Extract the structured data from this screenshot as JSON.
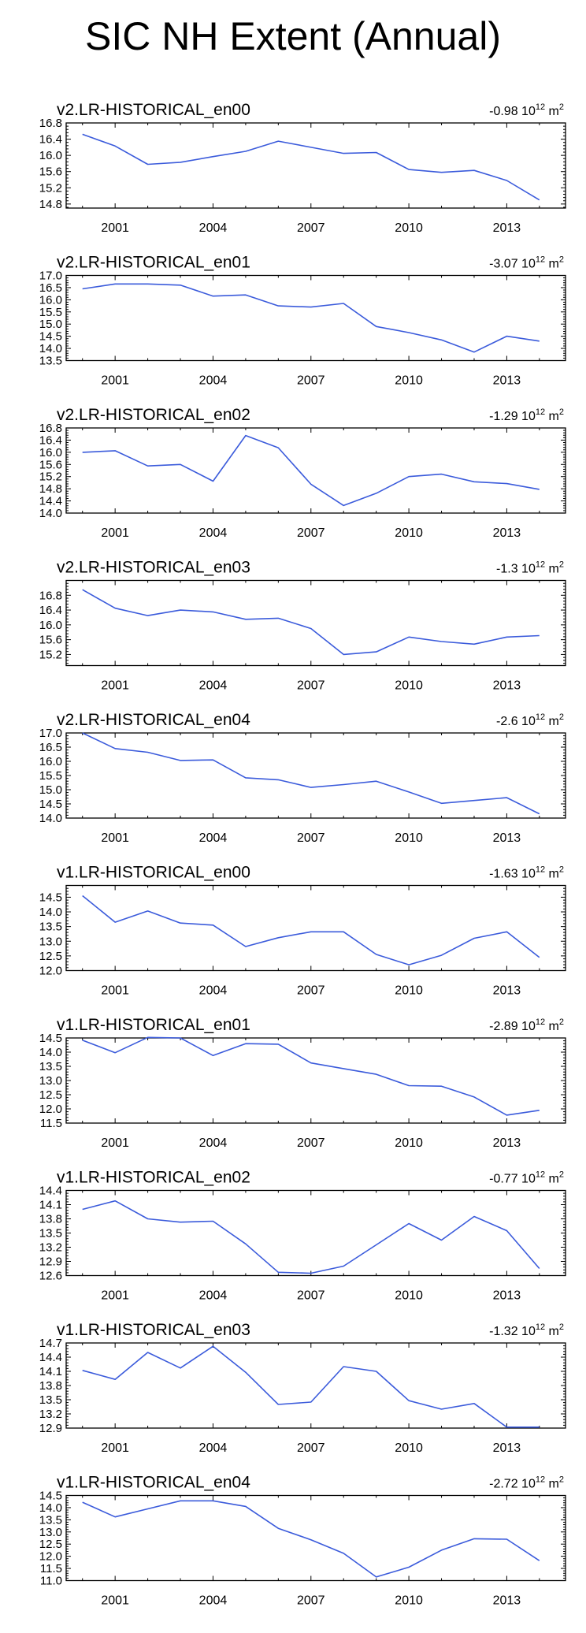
{
  "title": "SIC NH Extent (Annual)",
  "line_color": "#3b5bdb",
  "chart_data": [
    {
      "type": "line",
      "title": "v2.LR-HISTORICAL_en00",
      "trend_value": "-0.98",
      "trend_unit": "10",
      "trend_unit_exp": "12",
      "trend_unit_suffix": "m",
      "trend_unit_suffix_exp": "2",
      "x": [
        2000,
        2001,
        2002,
        2003,
        2004,
        2005,
        2006,
        2007,
        2008,
        2009,
        2010,
        2011,
        2012,
        2013,
        2014
      ],
      "x_ticklabels": [
        "2001",
        "2004",
        "2007",
        "2010",
        "2013"
      ],
      "x_tickvalues": [
        2001,
        2004,
        2007,
        2010,
        2013
      ],
      "xlim": [
        1999.5,
        2014.8
      ],
      "ylim": [
        14.7,
        16.8
      ],
      "y_ticklabels": [
        "14.8",
        "15.2",
        "15.6",
        "16.0",
        "16.4",
        "16.8"
      ],
      "y_tickvalues": [
        14.8,
        15.2,
        15.6,
        16.0,
        16.4,
        16.8
      ],
      "values": [
        16.52,
        16.23,
        15.78,
        15.83,
        15.97,
        16.1,
        16.35,
        16.2,
        16.05,
        16.07,
        15.65,
        15.58,
        15.63,
        15.38,
        14.9
      ]
    },
    {
      "type": "line",
      "title": "v2.LR-HISTORICAL_en01",
      "trend_value": "-3.07",
      "trend_unit": "10",
      "trend_unit_exp": "12",
      "trend_unit_suffix": "m",
      "trend_unit_suffix_exp": "2",
      "x": [
        2000,
        2001,
        2002,
        2003,
        2004,
        2005,
        2006,
        2007,
        2008,
        2009,
        2010,
        2011,
        2012,
        2013,
        2014
      ],
      "x_ticklabels": [
        "2001",
        "2004",
        "2007",
        "2010",
        "2013"
      ],
      "x_tickvalues": [
        2001,
        2004,
        2007,
        2010,
        2013
      ],
      "xlim": [
        1999.5,
        2014.8
      ],
      "ylim": [
        13.5,
        17.0
      ],
      "y_ticklabels": [
        "13.5",
        "14.0",
        "14.5",
        "15.0",
        "15.5",
        "16.0",
        "16.5",
        "17.0"
      ],
      "y_tickvalues": [
        13.5,
        14.0,
        14.5,
        15.0,
        15.5,
        16.0,
        16.5,
        17.0
      ],
      "values": [
        16.45,
        16.65,
        16.65,
        16.6,
        16.15,
        16.2,
        15.75,
        15.7,
        15.85,
        14.9,
        14.65,
        14.35,
        13.85,
        14.5,
        14.3
      ]
    },
    {
      "type": "line",
      "title": "v2.LR-HISTORICAL_en02",
      "trend_value": "-1.29",
      "trend_unit": "10",
      "trend_unit_exp": "12",
      "trend_unit_suffix": "m",
      "trend_unit_suffix_exp": "2",
      "x": [
        2000,
        2001,
        2002,
        2003,
        2004,
        2005,
        2006,
        2007,
        2008,
        2009,
        2010,
        2011,
        2012,
        2013,
        2014
      ],
      "x_ticklabels": [
        "2001",
        "2004",
        "2007",
        "2010",
        "2013"
      ],
      "x_tickvalues": [
        2001,
        2004,
        2007,
        2010,
        2013
      ],
      "xlim": [
        1999.5,
        2014.8
      ],
      "ylim": [
        14.0,
        16.8
      ],
      "y_ticklabels": [
        "14.0",
        "14.4",
        "14.8",
        "15.2",
        "15.6",
        "16.0",
        "16.4",
        "16.8"
      ],
      "y_tickvalues": [
        14.0,
        14.4,
        14.8,
        15.2,
        15.6,
        16.0,
        16.4,
        16.8
      ],
      "values": [
        16.0,
        16.05,
        15.55,
        15.6,
        15.05,
        16.55,
        16.15,
        14.95,
        14.25,
        14.65,
        15.2,
        15.28,
        15.03,
        14.97,
        14.78
      ]
    },
    {
      "type": "line",
      "title": "v2.LR-HISTORICAL_en03",
      "trend_value": "-1.3",
      "trend_unit": "10",
      "trend_unit_exp": "12",
      "trend_unit_suffix": "m",
      "trend_unit_suffix_exp": "2",
      "x": [
        2000,
        2001,
        2002,
        2003,
        2004,
        2005,
        2006,
        2007,
        2008,
        2009,
        2010,
        2011,
        2012,
        2013,
        2014
      ],
      "x_ticklabels": [
        "2001",
        "2004",
        "2007",
        "2010",
        "2013"
      ],
      "x_tickvalues": [
        2001,
        2004,
        2007,
        2010,
        2013
      ],
      "xlim": [
        1999.5,
        2014.8
      ],
      "ylim": [
        14.9,
        17.2
      ],
      "y_ticklabels": [
        "15.2",
        "15.6",
        "16.0",
        "16.4",
        "16.8"
      ],
      "y_tickvalues": [
        15.2,
        15.6,
        16.0,
        16.4,
        16.8
      ],
      "values": [
        16.95,
        16.45,
        16.25,
        16.4,
        16.35,
        16.15,
        16.18,
        15.9,
        15.2,
        15.27,
        15.67,
        15.55,
        15.48,
        15.67,
        15.71
      ]
    },
    {
      "type": "line",
      "title": "v2.LR-HISTORICAL_en04",
      "trend_value": "-2.6",
      "trend_unit": "10",
      "trend_unit_exp": "12",
      "trend_unit_suffix": "m",
      "trend_unit_suffix_exp": "2",
      "x": [
        2000,
        2001,
        2002,
        2003,
        2004,
        2005,
        2006,
        2007,
        2008,
        2009,
        2010,
        2011,
        2012,
        2013,
        2014
      ],
      "x_ticklabels": [
        "2001",
        "2004",
        "2007",
        "2010",
        "2013"
      ],
      "x_tickvalues": [
        2001,
        2004,
        2007,
        2010,
        2013
      ],
      "xlim": [
        1999.5,
        2014.8
      ],
      "ylim": [
        14.0,
        17.0
      ],
      "y_ticklabels": [
        "14.0",
        "14.5",
        "15.0",
        "15.5",
        "16.0",
        "16.5",
        "17.0"
      ],
      "y_tickvalues": [
        14.0,
        14.5,
        15.0,
        15.5,
        16.0,
        16.5,
        17.0
      ],
      "values": [
        17.0,
        16.45,
        16.32,
        16.03,
        16.05,
        15.42,
        15.35,
        15.08,
        15.18,
        15.3,
        14.92,
        14.52,
        14.62,
        14.72,
        14.15
      ]
    },
    {
      "type": "line",
      "title": "v1.LR-HISTORICAL_en00",
      "trend_value": "-1.63",
      "trend_unit": "10",
      "trend_unit_exp": "12",
      "trend_unit_suffix": "m",
      "trend_unit_suffix_exp": "2",
      "x": [
        2000,
        2001,
        2002,
        2003,
        2004,
        2005,
        2006,
        2007,
        2008,
        2009,
        2010,
        2011,
        2012,
        2013,
        2014
      ],
      "x_ticklabels": [
        "2001",
        "2004",
        "2007",
        "2010",
        "2013"
      ],
      "x_tickvalues": [
        2001,
        2004,
        2007,
        2010,
        2013
      ],
      "xlim": [
        1999.5,
        2014.8
      ],
      "ylim": [
        12.0,
        14.9
      ],
      "y_ticklabels": [
        "12.0",
        "12.5",
        "13.0",
        "13.5",
        "14.0",
        "14.5"
      ],
      "y_tickvalues": [
        12.0,
        12.5,
        13.0,
        13.5,
        14.0,
        14.5
      ],
      "values": [
        14.55,
        13.65,
        14.03,
        13.62,
        13.55,
        12.82,
        13.12,
        13.32,
        13.32,
        12.55,
        12.2,
        12.52,
        13.1,
        13.32,
        12.45
      ]
    },
    {
      "type": "line",
      "title": "v1.LR-HISTORICAL_en01",
      "trend_value": "-2.89",
      "trend_unit": "10",
      "trend_unit_exp": "12",
      "trend_unit_suffix": "m",
      "trend_unit_suffix_exp": "2",
      "x": [
        2000,
        2001,
        2002,
        2003,
        2004,
        2005,
        2006,
        2007,
        2008,
        2009,
        2010,
        2011,
        2012,
        2013,
        2014
      ],
      "x_ticklabels": [
        "2001",
        "2004",
        "2007",
        "2010",
        "2013"
      ],
      "x_tickvalues": [
        2001,
        2004,
        2007,
        2010,
        2013
      ],
      "xlim": [
        1999.5,
        2014.8
      ],
      "ylim": [
        11.5,
        14.5
      ],
      "y_ticklabels": [
        "11.5",
        "12.0",
        "12.5",
        "13.0",
        "13.5",
        "14.0",
        "14.5"
      ],
      "y_tickvalues": [
        11.5,
        12.0,
        12.5,
        13.0,
        13.5,
        14.0,
        14.5
      ],
      "values": [
        14.42,
        13.98,
        14.52,
        14.5,
        13.88,
        14.3,
        14.28,
        13.62,
        13.42,
        13.22,
        12.82,
        12.8,
        12.42,
        11.78,
        11.95
      ]
    },
    {
      "type": "line",
      "title": "v1.LR-HISTORICAL_en02",
      "trend_value": "-0.77",
      "trend_unit": "10",
      "trend_unit_exp": "12",
      "trend_unit_suffix": "m",
      "trend_unit_suffix_exp": "2",
      "x": [
        2000,
        2001,
        2002,
        2003,
        2004,
        2005,
        2006,
        2007,
        2008,
        2009,
        2010,
        2011,
        2012,
        2013,
        2014
      ],
      "x_ticklabels": [
        "2001",
        "2004",
        "2007",
        "2010",
        "2013"
      ],
      "x_tickvalues": [
        2001,
        2004,
        2007,
        2010,
        2013
      ],
      "xlim": [
        1999.5,
        2014.8
      ],
      "ylim": [
        12.6,
        14.4
      ],
      "y_ticklabels": [
        "12.6",
        "12.9",
        "13.2",
        "13.5",
        "13.8",
        "14.1",
        "14.4"
      ],
      "y_tickvalues": [
        12.6,
        12.9,
        13.2,
        13.5,
        13.8,
        14.1,
        14.4
      ],
      "values": [
        14.0,
        14.18,
        13.8,
        13.73,
        13.75,
        13.27,
        12.67,
        12.65,
        12.8,
        13.25,
        13.7,
        13.35,
        13.85,
        13.55,
        12.75
      ]
    },
    {
      "type": "line",
      "title": "v1.LR-HISTORICAL_en03",
      "trend_value": "-1.32",
      "trend_unit": "10",
      "trend_unit_exp": "12",
      "trend_unit_suffix": "m",
      "trend_unit_suffix_exp": "2",
      "x": [
        2000,
        2001,
        2002,
        2003,
        2004,
        2005,
        2006,
        2007,
        2008,
        2009,
        2010,
        2011,
        2012,
        2013,
        2014
      ],
      "x_ticklabels": [
        "2001",
        "2004",
        "2007",
        "2010",
        "2013"
      ],
      "x_tickvalues": [
        2001,
        2004,
        2007,
        2010,
        2013
      ],
      "xlim": [
        1999.5,
        2014.8
      ],
      "ylim": [
        12.9,
        14.7
      ],
      "y_ticklabels": [
        "12.9",
        "13.2",
        "13.5",
        "13.8",
        "14.1",
        "14.4",
        "14.7"
      ],
      "y_tickvalues": [
        12.9,
        13.2,
        13.5,
        13.8,
        14.1,
        14.4,
        14.7
      ],
      "values": [
        14.12,
        13.93,
        14.5,
        14.17,
        14.63,
        14.08,
        13.4,
        13.45,
        14.2,
        14.1,
        13.48,
        13.3,
        13.42,
        12.92,
        12.92
      ]
    },
    {
      "type": "line",
      "title": "v1.LR-HISTORICAL_en04",
      "trend_value": "-2.72",
      "trend_unit": "10",
      "trend_unit_exp": "12",
      "trend_unit_suffix": "m",
      "trend_unit_suffix_exp": "2",
      "x": [
        2000,
        2001,
        2002,
        2003,
        2004,
        2005,
        2006,
        2007,
        2008,
        2009,
        2010,
        2011,
        2012,
        2013,
        2014
      ],
      "x_ticklabels": [
        "2001",
        "2004",
        "2007",
        "2010",
        "2013"
      ],
      "x_tickvalues": [
        2001,
        2004,
        2007,
        2010,
        2013
      ],
      "xlim": [
        1999.5,
        2014.8
      ],
      "ylim": [
        11.0,
        14.5
      ],
      "y_ticklabels": [
        "11.0",
        "11.5",
        "12.0",
        "12.5",
        "13.0",
        "13.5",
        "14.0",
        "14.5"
      ],
      "y_tickvalues": [
        11.0,
        11.5,
        12.0,
        12.5,
        13.0,
        13.5,
        14.0,
        14.5
      ],
      "values": [
        14.22,
        13.62,
        13.95,
        14.28,
        14.28,
        14.05,
        13.15,
        12.68,
        12.12,
        11.15,
        11.55,
        12.25,
        12.72,
        12.7,
        11.82
      ]
    }
  ]
}
